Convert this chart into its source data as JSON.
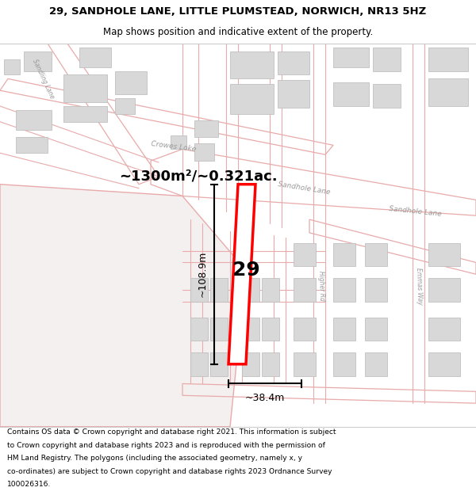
{
  "title_line1": "29, SANDHOLE LANE, LITTLE PLUMSTEAD, NORWICH, NR13 5HZ",
  "title_line2": "Map shows position and indicative extent of the property.",
  "area_label": "~1300m²/~0.321ac.",
  "width_label": "~38.4m",
  "height_label": "~108.9m",
  "property_number": "29",
  "bg_color": "#faf8f8",
  "road_color": "#e8aaaa",
  "building_color": "#d8d8d8",
  "building_edge": "#b8b8b8",
  "highlight_color": "#ff0000",
  "street_label1": "Sandhole Lane",
  "street_label2": "Sandhole Lane",
  "street_label3": "Crowes Loke",
  "street_label4": "Sandling Lane",
  "street_label5": "Higher Rd",
  "street_label6": "Emmas Way",
  "footer_lines": [
    "Contains OS data © Crown copyright and database right 2021. This information is subject",
    "to Crown copyright and database rights 2023 and is reproduced with the permission of",
    "HM Land Registry. The polygons (including the associated geometry, namely x, y",
    "co-ordinates) are subject to Crown copyright and database rights 2023 Ordnance Survey",
    "100026316."
  ],
  "title_fontsize": 9.5,
  "subtitle_fontsize": 8.5,
  "footer_fontsize": 6.6
}
